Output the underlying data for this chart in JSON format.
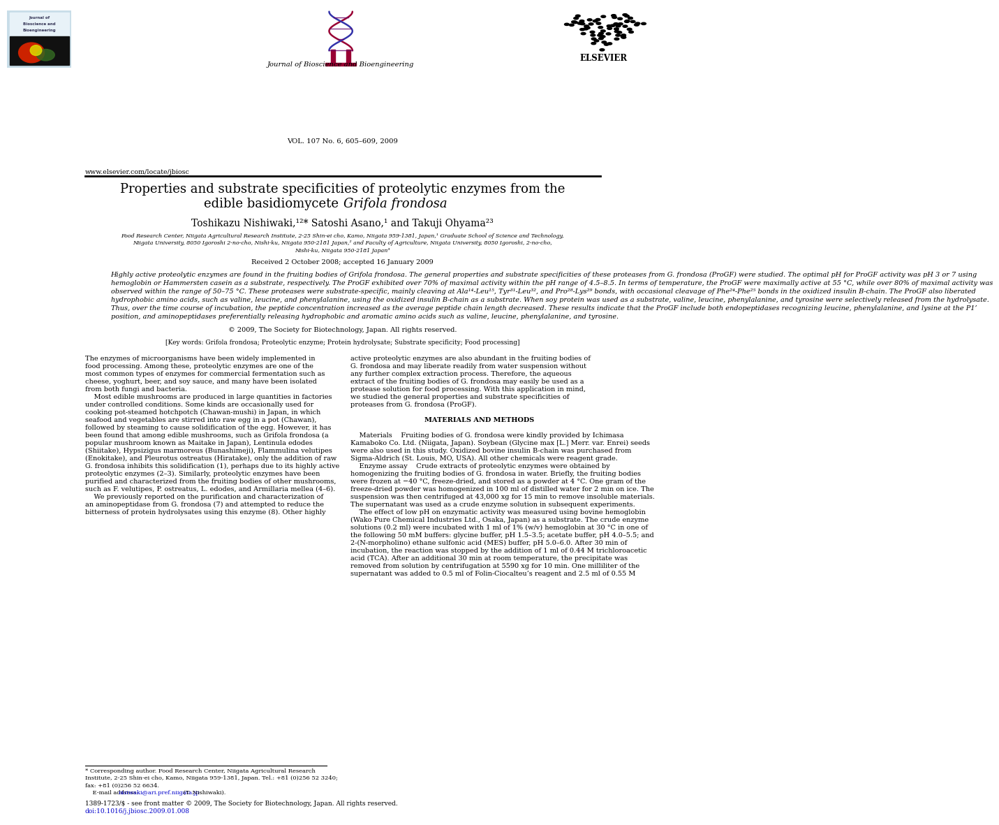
{
  "background_color": "#ffffff",
  "page_width": 9.92,
  "page_height": 13.23,
  "header_journal": "Journal of Bioscience and Bioengineering",
  "header_volume": "VOL. 107 No. 6, 605–609, 2009",
  "header_url": "www.elsevier.com/locate/jbiosc",
  "title_line1": "Properties and substrate specificities of proteolytic enzymes from the",
  "title_line2_plain": "edible basidiomycete ",
  "title_line2_italic": "Grifola frondosa",
  "authors_line": "Toshikazu Nishiwaki,¹²* Satoshi Asano,¹ and Takuji Ohyama²³",
  "affil1": "Food Research Center, Niigata Agricultural Research Institute, 2-25 Shin-ei cho, Kamo, Niigata 959-1381, Japan,¹ Graduate School of Science and Technology,",
  "affil2": "Niigata University, 8050 Igoroshi 2-no-cho, Nishi-ku, Niigata 950-2181 Japan,² and Faculty of Agriculture, Niigata University, 8050 Igoroshi, 2-no-cho,",
  "affil3": "Nishi-ku, Niigata 950-2181 Japan³",
  "received": "Received 2 October 2008; accepted 16 January 2009",
  "abstract_lines": [
    "Highly active proteolytic enzymes are found in the fruiting bodies of Grifola frondosa. The general properties and substrate specificities of these proteases from G. frondosa (ProGF) were studied. The optimal pH for ProGF activity was pH 3 or 7 using",
    "hemoglobin or Hammersten casein as a substrate, respectively. The ProGF exhibited over 70% of maximal activity within the pH range of 4.5–8.5. In terms of temperature, the ProGF were maximally active at 55 °C, while over 80% of maximal activity was",
    "observed within the range of 50–75 °C. These proteases were substrate-specific, mainly cleaving at Ala¹⁴-Leu¹⁵, Tyr³¹-Leu³², and Pro²⁸-Lys²⁹ bonds, with occasional cleavage of Phe²⁴-Phe²⁵ bonds in the oxidized insulin B-chain. The ProGF also liberated",
    "hydrophobic amino acids, such as valine, leucine, and phenylalanine, using the oxidized insulin B-chain as a substrate. When soy protein was used as a substrate, valine, leucine, phenylalanine, and tyrosine were selectively released from the hydrolysate.",
    "Thus, over the time course of incubation, the peptide concentration increased as the average peptide chain length decreased. These results indicate that the ProGF include both endopeptidases recognizing leucine, phenylalanine, and lysine at the P1’",
    "position, and aminopeptidases preferentially releasing hydrophobic and aromatic amino acids such as valine, leucine, phenylalanine, and tyrosine."
  ],
  "copyright": "© 2009, The Society for Biotechnology, Japan. All rights reserved.",
  "keywords": "[Key words: Grifola frondosa; Proteolytic enzyme; Protein hydrolysate; Substrate specificity; Food processing]",
  "left_col_lines": [
    "The enzymes of microorganisms have been widely implemented in",
    "food processing. Among these, proteolytic enzymes are one of the",
    "most common types of enzymes for commercial fermentation such as",
    "cheese, yoghurt, beer, and soy sauce, and many have been isolated",
    "from both fungi and bacteria.",
    "    Most edible mushrooms are produced in large quantities in factories",
    "under controlled conditions. Some kinds are occasionally used for",
    "cooking pot-steamed hotchpotch (Chawan-mushi) in Japan, in which",
    "seafood and vegetables are stirred into raw egg in a pot (Chawan),",
    "followed by steaming to cause solidification of the egg. However, it has",
    "been found that among edible mushrooms, such as Grifola frondosa (a",
    "popular mushroom known as Maitake in Japan), Lentinula edodes",
    "(Shiitake), Hypsizigus marmoreus (Bunashimeji), Flammulina velutipes",
    "(Enokitake), and Pleurotus ostreatus (Hiratake), only the addition of raw",
    "G. frondosa inhibits this solidification (1), perhaps due to its highly active",
    "proteolytic enzymes (2–3). Similarly, proteolytic enzymes have been",
    "purified and characterized from the fruiting bodies of other mushrooms,",
    "such as F. velutipes, P. ostreatus, L. edodes, and Armillaria mellea (4–6).",
    "    We previously reported on the purification and characterization of",
    "an aminopeptidase from G. frondosa (7) and attempted to reduce the",
    "bitterness of protein hydrolysates using this enzyme (8). Other highly"
  ],
  "right_col_lines": [
    "active proteolytic enzymes are also abundant in the fruiting bodies of",
    "G. frondosa and may liberate readily from water suspension without",
    "any further complex extraction process. Therefore, the aqueous",
    "extract of the fruiting bodies of G. frondosa may easily be used as a",
    "protease solution for food processing. With this application in mind,",
    "we studied the general properties and substrate specificities of",
    "proteases from G. frondosa (ProGF).",
    "",
    "MATERIALS AND METHODS",
    "",
    "    Materials    Fruiting bodies of G. frondosa were kindly provided by Ichimasa",
    "Kamaboko Co. Ltd. (Niigata, Japan). Soybean (Glycine max [L.] Merr. var. Enrei) seeds",
    "were also used in this study. Oxidized bovine insulin B-chain was purchased from",
    "Sigma-Aldrich (St. Louis, MO, USA). All other chemicals were reagent grade.",
    "    Enzyme assay    Crude extracts of proteolytic enzymes were obtained by",
    "homogenizing the fruiting bodies of G. frondosa in water. Briefly, the fruiting bodies",
    "were frozen at −40 °C, freeze-dried, and stored as a powder at 4 °C. One gram of the",
    "freeze-dried powder was homogenized in 100 ml of distilled water for 2 min on ice. The",
    "suspension was then centrifuged at 43,000 xg for 15 min to remove insoluble materials.",
    "The supernatant was used as a crude enzyme solution in subsequent experiments.",
    "    The effect of low pH on enzymatic activity was measured using bovine hemoglobin",
    "(Wako Pure Chemical Industries Ltd., Osaka, Japan) as a substrate. The crude enzyme",
    "solutions (0.2 ml) were incubated with 1 ml of 1% (w/v) hemoglobin at 30 °C in one of",
    "the following 50 mM buffers: glycine buffer, pH 1.5–3.5; acetate buffer, pH 4.0–5.5; and",
    "2-(N-morpholino) ethane sulfonic acid (MES) buffer, pH 5.0–6.0. After 30 min of",
    "incubation, the reaction was stopped by the addition of 1 ml of 0.44 M trichloroacetic",
    "acid (TCA). After an additional 30 min at room temperature, the precipitate was",
    "removed from solution by centrifugation at 5590 xg for 10 min. One milliliter of the",
    "supernatant was added to 0.5 ml of Folin-Ciocalteu’s reagent and 2.5 ml of 0.55 M"
  ],
  "footer_lines": [
    "* Corresponding author. Food Research Center, Niigata Agricultural Research",
    "Institute, 2-25 Shin-ei cho, Kamo, Niigata 959-1381, Japan. Tel.: +81 (0)256 52 3240;",
    "fax: +81 (0)256 52 6634.",
    "    E-mail address: nisiwaki@ari.pref.niigata.jp (T. Nishiwaki)."
  ],
  "footer_copy": "1389-1723/$ - see front matter © 2009, The Society for Biotechnology, Japan. All rights reserved.",
  "footer_doi": "doi:10.1016/j.jbiosc.2009.01.008"
}
